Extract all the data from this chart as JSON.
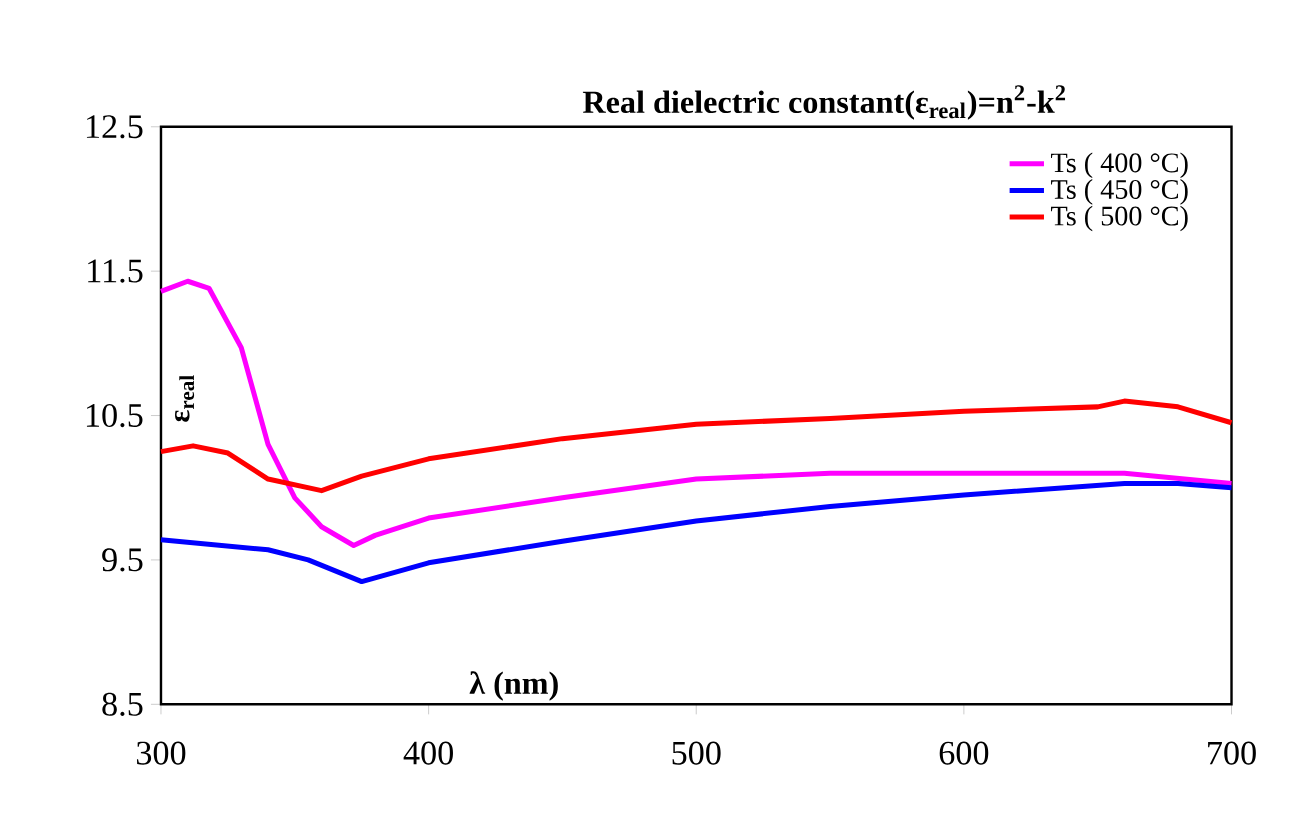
{
  "chart_data": {
    "type": "line",
    "title": "**Real dielectric constant(ε$_{real}$)=n$^{2}$-k$^{2}$**",
    "xlabel": "**λ (nm)**",
    "ylabel": "**ε$_{real}$**",
    "xlim": [
      300,
      700
    ],
    "ylim": [
      8.5,
      12.5
    ],
    "xticks": [
      300,
      400,
      500,
      600,
      700
    ],
    "yticks": [
      8.5,
      9.5,
      10.5,
      11.5,
      12.5
    ],
    "grid": false,
    "legend": "top right",
    "series": [
      {
        "name": "Ts ( 400 °C)",
        "color": "#ff00ff",
        "x": [
          300,
          310,
          318,
          330,
          340,
          350,
          360,
          372,
          380,
          400,
          450,
          500,
          550,
          600,
          660,
          700
        ],
        "values": [
          11.36,
          11.43,
          11.38,
          10.97,
          10.3,
          9.93,
          9.73,
          9.6,
          9.67,
          9.79,
          9.93,
          10.06,
          10.1,
          10.1,
          10.1,
          10.03
        ]
      },
      {
        "name": "Ts ( 450 °C)",
        "color": "#0000ff",
        "x": [
          300,
          340,
          355,
          375,
          400,
          450,
          500,
          550,
          600,
          660,
          680,
          700
        ],
        "values": [
          9.64,
          9.57,
          9.5,
          9.35,
          9.48,
          9.63,
          9.77,
          9.87,
          9.95,
          10.03,
          10.03,
          10.0
        ]
      },
      {
        "name": "Ts ( 500 °C)",
        "color": "#ff0000",
        "x": [
          300,
          312,
          325,
          340,
          360,
          375,
          400,
          450,
          500,
          550,
          600,
          650,
          660,
          680,
          700
        ],
        "values": [
          10.25,
          10.29,
          10.24,
          10.06,
          9.98,
          10.08,
          10.2,
          10.34,
          10.44,
          10.48,
          10.53,
          10.56,
          10.6,
          10.56,
          10.45
        ]
      }
    ]
  }
}
